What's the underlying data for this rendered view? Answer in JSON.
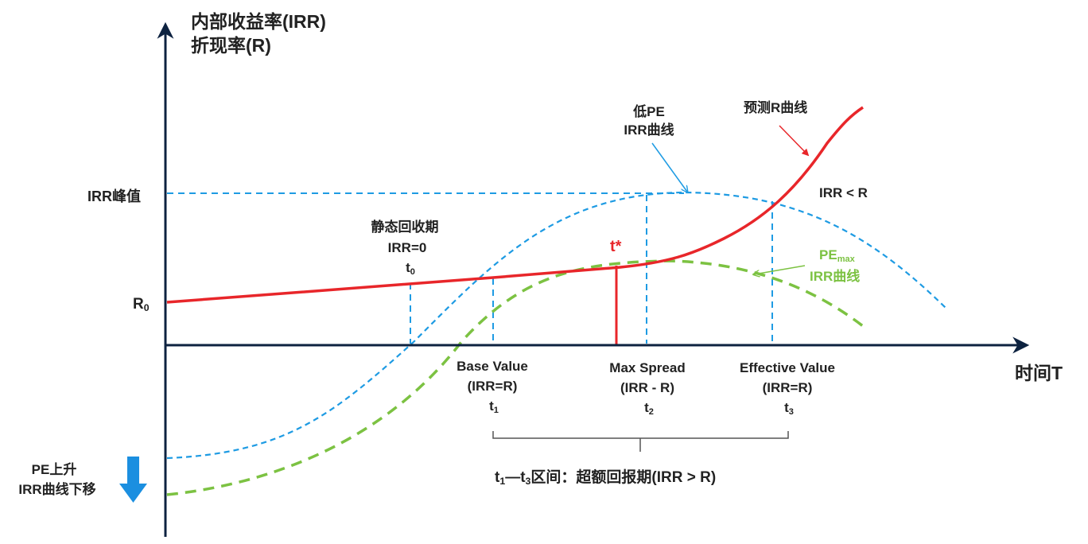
{
  "title": {
    "line1": "内部收益率(IRR)",
    "line2": "折现率(R)"
  },
  "x_axis_label": "时间T",
  "y_ticks": {
    "irr_peak": "IRR峰值",
    "r0_main": "R",
    "r0_sub": "0"
  },
  "curves": {
    "low_pe_line1": "低PE",
    "low_pe_line2": "IRR曲线",
    "forecast_r": "预测R曲线",
    "irr_lt_r": "IRR < R",
    "pe_max_main": "PE",
    "pe_max_sub": "max",
    "pe_max_line2": "IRR曲线"
  },
  "points": {
    "t0": {
      "line1": "静态回收期",
      "line2": "IRR=0",
      "t_main": "t",
      "t_sub": "0"
    },
    "t1": {
      "line1": "Base Value",
      "line2": "(IRR=R)",
      "t_main": "t",
      "t_sub": "1"
    },
    "t2": {
      "line1": "Max Spread",
      "line2": "(IRR - R)",
      "t_main": "t",
      "t_sub": "2"
    },
    "t3": {
      "line1": "Effective Value",
      "line2": "(IRR=R)",
      "t_main": "t",
      "t_sub": "3"
    },
    "tstar": "t*"
  },
  "interval": {
    "t1": "t",
    "s1": "1",
    "dash": "—t",
    "s3": "3",
    "rest": "区间：超额回报期(IRR > R)"
  },
  "pe_shift": {
    "line1": "PE上升",
    "line2": "IRR曲线下移"
  },
  "colors": {
    "axis": "#0d2240",
    "red": "#e8262a",
    "blue_dash": "#1e9be3",
    "green_dash": "#7cc242",
    "arrow_blue": "#1b8fe0",
    "text": "#222222"
  }
}
